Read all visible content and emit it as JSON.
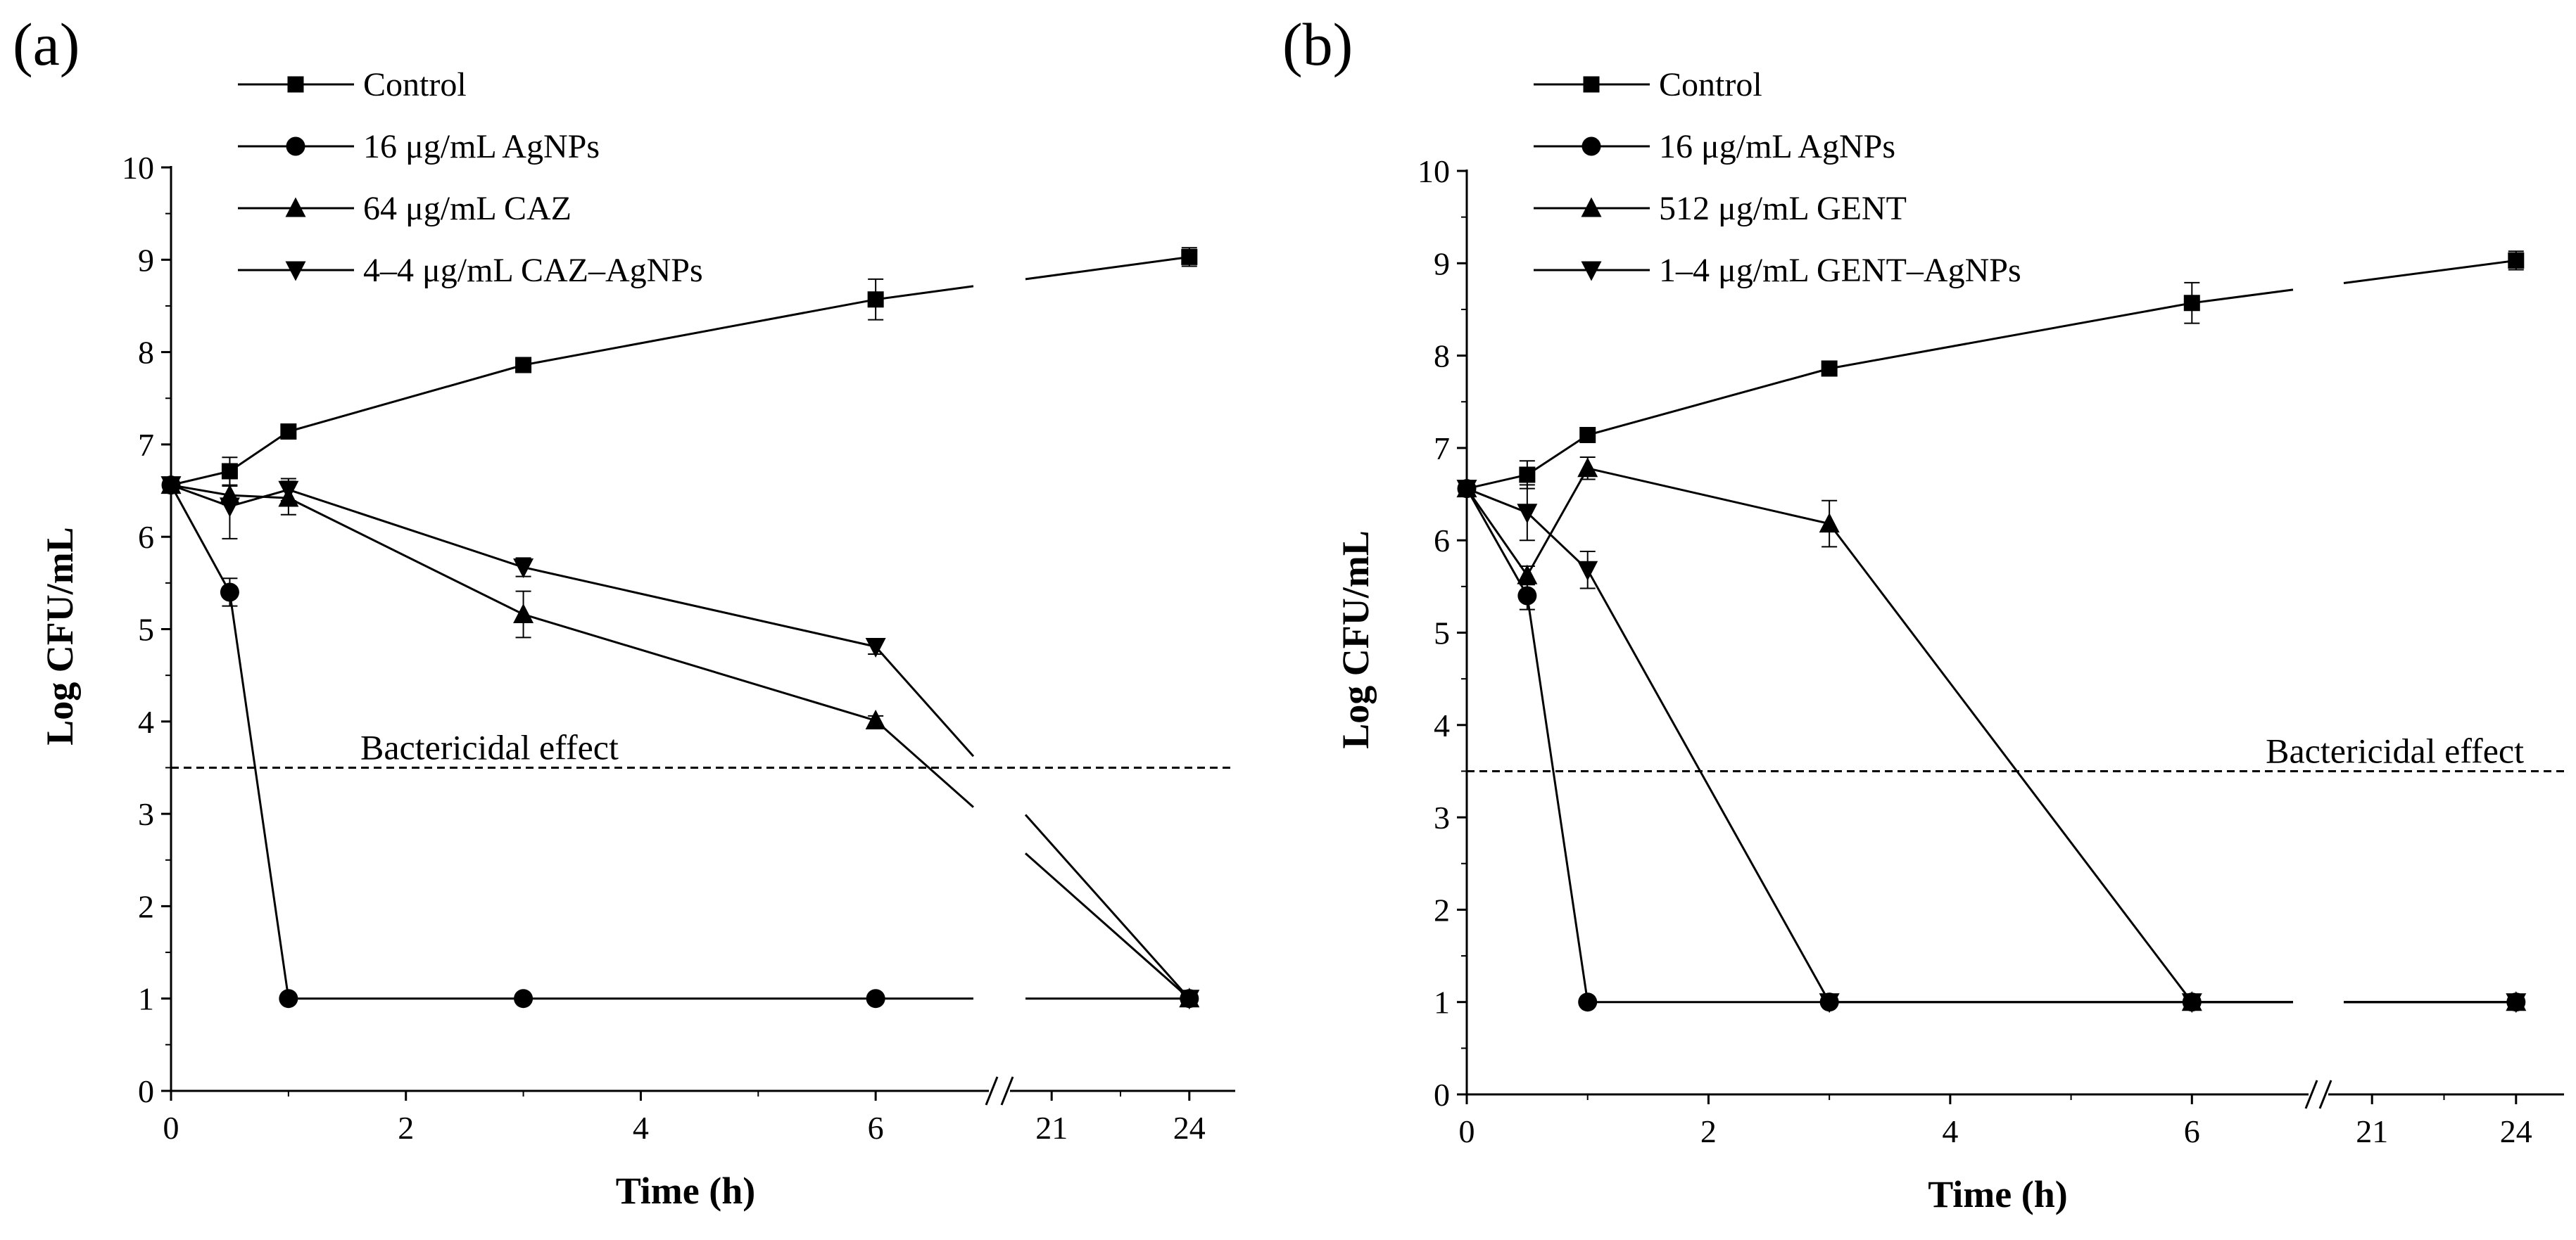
{
  "chart_data": [
    {
      "panel_label": "(a)",
      "type": "line",
      "xlabel": "Time (h)",
      "ylabel": "Log CFU/mL",
      "ylim": [
        0,
        10
      ],
      "yticks": [
        "0",
        "1",
        "2",
        "3",
        "4",
        "5",
        "6",
        "7",
        "8",
        "9",
        "10"
      ],
      "x_axis": {
        "segment_1_range": [
          0,
          7
        ],
        "segment_1_ticks": [
          "0",
          "2",
          "4",
          "6"
        ],
        "axis_break_between": [
          7,
          20
        ],
        "segment_2_range": [
          20,
          25
        ],
        "segment_2_ticks": [
          "21",
          "24"
        ]
      },
      "annotations": [
        {
          "text": "Bactericidal effect",
          "y": 3.5
        }
      ],
      "series": [
        {
          "name": "Control",
          "marker": "square",
          "x": [
            0,
            0.5,
            1,
            3,
            6,
            24
          ],
          "values": [
            6.56,
            6.71,
            7.14,
            7.86,
            8.57,
            9.03
          ],
          "errors": [
            0.05,
            0.15,
            0.05,
            0.05,
            0.22,
            0.1
          ]
        },
        {
          "name": "16 μg/mL AgNPs",
          "marker": "circle",
          "x": [
            0,
            0.5,
            1,
            3,
            6,
            24
          ],
          "values": [
            6.56,
            5.4,
            1.0,
            1.0,
            1.0,
            1.0
          ],
          "errors": [
            0.05,
            0.15,
            0,
            0,
            0,
            0
          ]
        },
        {
          "name": "64 μg/mL CAZ",
          "marker": "triangle-up",
          "x": [
            0,
            0.5,
            1,
            3,
            6,
            24
          ],
          "values": [
            6.56,
            6.45,
            6.42,
            5.16,
            4.01,
            1.0
          ],
          "errors": [
            0.05,
            0.1,
            0.18,
            0.25,
            0.05,
            0
          ]
        },
        {
          "name": "4–4 μg/mL CAZ–AgNPs",
          "marker": "triangle-down",
          "x": [
            0,
            0.5,
            1,
            3,
            6,
            24
          ],
          "values": [
            6.56,
            6.33,
            6.51,
            5.67,
            4.81,
            1.0
          ],
          "errors": [
            0.05,
            0.35,
            0.12,
            0.1,
            0.08,
            0
          ]
        }
      ]
    },
    {
      "panel_label": "(b)",
      "type": "line",
      "xlabel": "Time (h)",
      "ylabel": "Log CFU/mL",
      "ylim": [
        0,
        10
      ],
      "yticks": [
        "0",
        "1",
        "2",
        "3",
        "4",
        "5",
        "6",
        "7",
        "8",
        "9",
        "10"
      ],
      "x_axis": {
        "segment_1_range": [
          0,
          7
        ],
        "segment_1_ticks": [
          "0",
          "2",
          "4",
          "6"
        ],
        "axis_break_between": [
          7,
          20
        ],
        "segment_2_range": [
          20,
          25
        ],
        "segment_2_ticks": [
          "21",
          "24"
        ]
      },
      "annotations": [
        {
          "text": "Bactericidal effect",
          "y": 3.5
        }
      ],
      "series": [
        {
          "name": "Control",
          "marker": "square",
          "x": [
            0,
            0.5,
            1,
            3,
            6,
            24
          ],
          "values": [
            6.56,
            6.71,
            7.14,
            7.86,
            8.57,
            9.03
          ],
          "errors": [
            0.05,
            0.15,
            0.05,
            0.05,
            0.22,
            0.1
          ]
        },
        {
          "name": "16 μg/mL AgNPs",
          "marker": "circle",
          "x": [
            0,
            0.5,
            1,
            3,
            6,
            24
          ],
          "values": [
            6.56,
            5.4,
            1.0,
            1.0,
            1.0,
            1.0
          ],
          "errors": [
            0.05,
            0.15,
            0,
            0,
            0,
            0
          ]
        },
        {
          "name": "512 μg/mL GENT",
          "marker": "triangle-up",
          "x": [
            0,
            0.5,
            1,
            3,
            6,
            24
          ],
          "values": [
            6.56,
            5.62,
            6.78,
            6.18,
            1.0,
            1.0
          ],
          "errors": [
            0.05,
            0.1,
            0.12,
            0.25,
            0,
            0
          ]
        },
        {
          "name": "1–4 μg/mL GENT–AgNPs",
          "marker": "triangle-down",
          "x": [
            0,
            0.5,
            1,
            3,
            6,
            24
          ],
          "values": [
            6.56,
            6.3,
            5.68,
            1.0,
            1.0,
            1.0
          ],
          "errors": [
            0.05,
            0.3,
            0.2,
            0,
            0,
            0
          ]
        }
      ]
    }
  ]
}
